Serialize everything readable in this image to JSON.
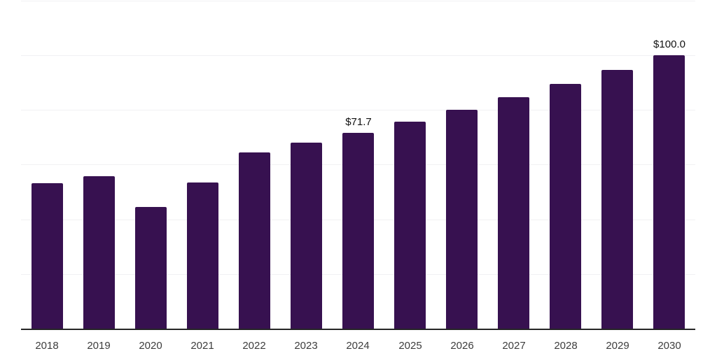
{
  "chart_data": {
    "type": "bar",
    "title": "",
    "xlabel": "",
    "ylabel": "",
    "categories": [
      "2018",
      "2019",
      "2020",
      "2021",
      "2022",
      "2023",
      "2024",
      "2025",
      "2026",
      "2027",
      "2028",
      "2029",
      "2030"
    ],
    "values": [
      53.2,
      55.8,
      44.5,
      53.5,
      64.5,
      68.0,
      71.7,
      75.8,
      80.1,
      84.7,
      89.5,
      94.6,
      100.0
    ],
    "value_labels": [
      "",
      "",
      "",
      "",
      "",
      "",
      "$71.7",
      "",
      "",
      "",
      "",
      "",
      "$100.0"
    ],
    "ylim": [
      0,
      120
    ],
    "grid": true,
    "grid_step": 20,
    "legend": "none",
    "y_tick_labels_visible": false,
    "colors": {
      "bar": "#371150",
      "grid": "#f1f1f3",
      "axis": "#262626",
      "value_label": "#111111",
      "x_label": "#3d3d3d",
      "background": "#ffffff"
    }
  }
}
